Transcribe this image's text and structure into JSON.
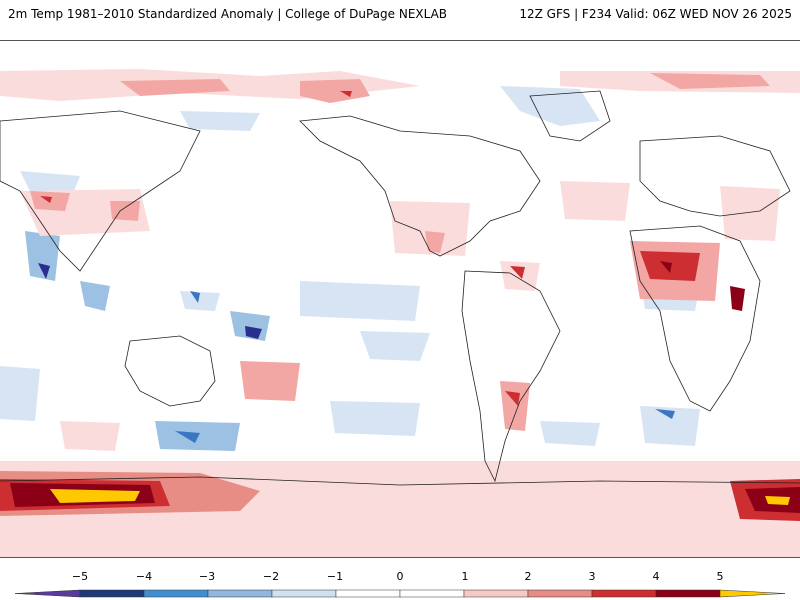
{
  "header": {
    "title_left": "2m Temp 1981–2010 Standardized Anomaly | College of DuPage NEXLAB",
    "title_right": "12Z GFS | F234 Valid: 06Z WED NOV 26 2025"
  },
  "colors": {
    "warm_light": "#fbdcdc",
    "warm_mid": "#f2a7a4",
    "warm_strong": "#d6424a",
    "warm_extreme": "#8b0016",
    "warm_max": "#ffc800",
    "cold_light": "#d6e4f3",
    "cold_mid": "#9cc1e3",
    "cold_strong": "#3a76c4",
    "cold_extreme": "#2a2f8f",
    "coastline": "#222222"
  },
  "colorbar": {
    "ticks": [
      "−5",
      "−4",
      "−3",
      "−2",
      "−1",
      "0",
      "1",
      "2",
      "3",
      "4",
      "5"
    ],
    "segments": [
      "#5b3aa0",
      "#1d3a78",
      "#3f8fd0",
      "#8fb7e0",
      "#cfe0f0",
      "#ffffff",
      "#ffffff",
      "#f7c9c6",
      "#e88d86",
      "#cc2e32",
      "#8b0016",
      "#ffc800"
    ]
  }
}
